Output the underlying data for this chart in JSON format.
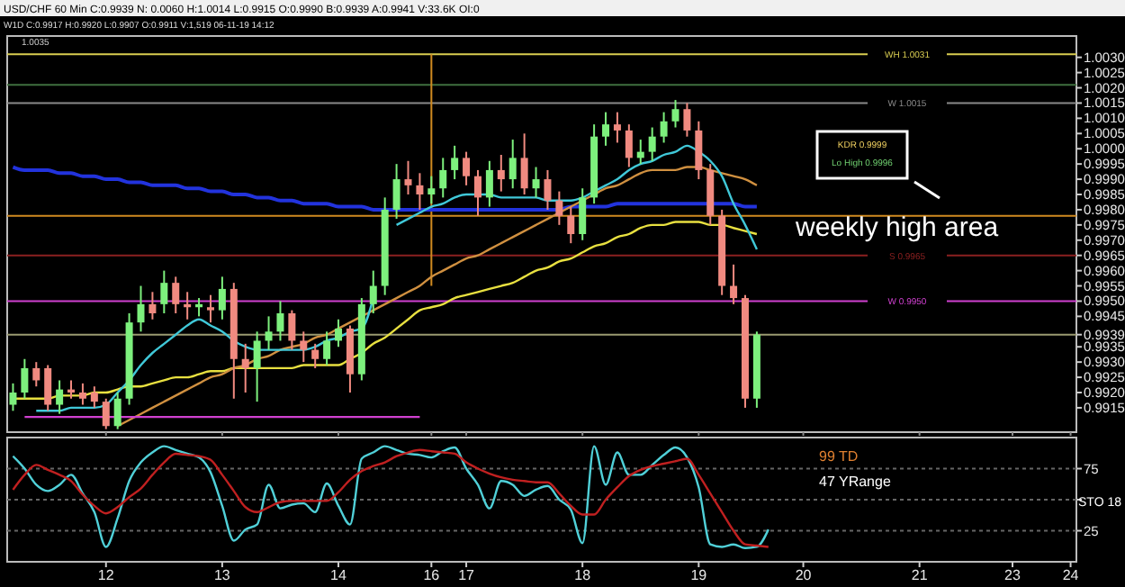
{
  "chart_data": [
    {
      "type": "candlestick",
      "title": "USD/CHF 60 Min C:0.9939 N: 0.0060 H:1.0014 L:0.9915 O:0.9990 B:0.9939 A:0.9941 V:33.6K OI:0",
      "subtitle": "W1D C:0.9917 H:0.9920 L:0.9907 O:0.9911 V:1,519 06-11-19 14:12",
      "categories": [
        null,
        null,
        null,
        null,
        null,
        null,
        null,
        null,
        "12",
        null,
        null,
        null,
        null,
        null,
        null,
        null,
        null,
        null,
        "13",
        null,
        null,
        null,
        null,
        null,
        null,
        null,
        null,
        null,
        "14",
        null,
        null,
        null,
        null,
        null,
        null,
        null,
        "16",
        null,
        null,
        "17",
        null,
        null,
        null,
        null,
        null,
        null,
        null,
        null,
        null,
        "18",
        null,
        null,
        null,
        null,
        null,
        null,
        null,
        null,
        null,
        "19",
        null,
        null,
        null,
        null,
        null,
        null,
        null,
        null,
        "20",
        null,
        null,
        null,
        null,
        null,
        null,
        null,
        null,
        null,
        "21",
        null,
        null,
        null,
        null,
        null,
        null,
        null,
        "23",
        null,
        null,
        null,
        null,
        "24"
      ],
      "ohlc": [
        [
          0.9916,
          0.9923,
          0.9914,
          0.992
        ],
        [
          0.992,
          0.9931,
          0.9918,
          0.9928
        ],
        [
          0.9928,
          0.993,
          0.9922,
          0.9924
        ],
        [
          0.9928,
          0.9929,
          0.9914,
          0.9916
        ],
        [
          0.9916,
          0.9924,
          0.9913,
          0.9921
        ],
        [
          0.9921,
          0.9924,
          0.9918,
          0.992
        ],
        [
          0.992,
          0.9923,
          0.9916,
          0.9918
        ],
        [
          0.992,
          0.9922,
          0.9915,
          0.9917
        ],
        [
          0.9917,
          0.9918,
          0.9908,
          0.9909
        ],
        [
          0.9909,
          0.992,
          0.9908,
          0.9918
        ],
        [
          0.9918,
          0.9946,
          0.9916,
          0.9943
        ],
        [
          0.9943,
          0.9955,
          0.994,
          0.9949
        ],
        [
          0.9949,
          0.9953,
          0.9944,
          0.9946
        ],
        [
          0.9949,
          0.996,
          0.9946,
          0.9956
        ],
        [
          0.9956,
          0.9958,
          0.9946,
          0.9949
        ],
        [
          0.9949,
          0.9953,
          0.9944,
          0.9948
        ],
        [
          0.9948,
          0.9951,
          0.9945,
          0.9949
        ],
        [
          0.9948,
          0.9952,
          0.9943,
          0.9947
        ],
        [
          0.9947,
          0.9958,
          0.9944,
          0.9954
        ],
        [
          0.9954,
          0.9956,
          0.9918,
          0.9931
        ],
        [
          0.9931,
          0.9936,
          0.992,
          0.9928
        ],
        [
          0.9928,
          0.994,
          0.9917,
          0.9937
        ],
        [
          0.9937,
          0.9945,
          0.9934,
          0.994
        ],
        [
          0.994,
          0.995,
          0.9937,
          0.9946
        ],
        [
          0.9946,
          0.9947,
          0.9934,
          0.9937
        ],
        [
          0.9937,
          0.994,
          0.993,
          0.9934
        ],
        [
          0.9934,
          0.9936,
          0.9928,
          0.9931
        ],
        [
          0.9931,
          0.994,
          0.9929,
          0.9937
        ],
        [
          0.9937,
          0.9944,
          0.9935,
          0.9941
        ],
        [
          0.9941,
          0.9942,
          0.992,
          0.9926
        ],
        [
          0.9926,
          0.9951,
          0.9924,
          0.9949
        ],
        [
          0.9949,
          0.996,
          0.9946,
          0.9955
        ],
        [
          0.9955,
          0.9984,
          0.9952,
          0.998
        ],
        [
          0.998,
          0.9995,
          0.9977,
          0.999
        ],
        [
          0.999,
          0.9996,
          0.9985,
          0.9988
        ],
        [
          0.9988,
          0.9992,
          0.998,
          0.9985
        ],
        [
          0.9985,
          0.9991,
          0.9982,
          0.9987
        ],
        [
          0.9987,
          0.9997,
          0.9984,
          0.9993
        ],
        [
          0.9993,
          1.0001,
          0.999,
          0.9997
        ],
        [
          0.9997,
          0.9999,
          0.9988,
          0.9991
        ],
        [
          0.9991,
          0.9993,
          0.9978,
          0.9984
        ],
        [
          0.9984,
          0.9996,
          0.9981,
          0.9993
        ],
        [
          0.9993,
          0.9998,
          0.9986,
          0.999
        ],
        [
          0.999,
          1.0003,
          0.9987,
          0.9997
        ],
        [
          0.9997,
          1.0005,
          0.9985,
          0.9987
        ],
        [
          0.9987,
          0.9994,
          0.9984,
          0.999
        ],
        [
          0.999,
          0.9993,
          0.998,
          0.9983
        ],
        [
          0.9983,
          0.9986,
          0.9975,
          0.9978
        ],
        [
          0.9978,
          0.9981,
          0.9969,
          0.9972
        ],
        [
          0.9972,
          0.9987,
          0.997,
          0.9984
        ],
        [
          0.9984,
          1.0008,
          0.9982,
          1.0004
        ],
        [
          1.0004,
          1.0012,
          1.0001,
          1.0008
        ],
        [
          1.0008,
          1.0012,
          1.0002,
          1.0006
        ],
        [
          1.0006,
          1.0008,
          0.9994,
          0.9997
        ],
        [
          0.9997,
          1.0003,
          0.9995,
          0.9999
        ],
        [
          0.9999,
          1.0007,
          0.9996,
          1.0004
        ],
        [
          1.0004,
          1.0012,
          1.0002,
          1.0009
        ],
        [
          1.0009,
          1.0016,
          1.0007,
          1.0013
        ],
        [
          1.0013,
          1.0015,
          1.0004,
          1.0006
        ],
        [
          1.0006,
          1.0009,
          0.999,
          0.9993
        ],
        [
          0.9993,
          0.9995,
          0.9975,
          0.9978
        ],
        [
          0.9978,
          0.998,
          0.9952,
          0.9955
        ],
        [
          0.9955,
          0.9962,
          0.9949,
          0.9951
        ],
        [
          0.9951,
          0.9952,
          0.9915,
          0.9918
        ],
        [
          0.9918,
          0.994,
          0.9915,
          0.9939
        ],
        null,
        null,
        null,
        null,
        null,
        null,
        null,
        null,
        null,
        null,
        null,
        null,
        null,
        null,
        null,
        null,
        null,
        null,
        null,
        null,
        null,
        null,
        null,
        null,
        null,
        null,
        null
      ],
      "series": [
        {
          "type": "line",
          "color": "#2233dd",
          "values": [
            0.9994,
            0.9993,
            0.9993,
            0.9993,
            0.9992,
            0.9992,
            0.9991,
            0.9991,
            0.999,
            0.999,
            0.9989,
            0.9989,
            0.9988,
            0.9988,
            0.9988,
            0.9987,
            0.9987,
            0.9986,
            0.9986,
            0.9985,
            0.9985,
            0.9984,
            0.9984,
            0.9983,
            0.9983,
            0.9982,
            0.9982,
            0.9982,
            0.9981,
            0.9981,
            0.9981,
            0.998,
            0.998,
            0.998,
            0.998,
            0.998,
            0.998,
            0.998,
            0.998,
            0.998,
            0.998,
            0.998,
            0.998,
            0.998,
            0.998,
            0.998,
            0.998,
            0.998,
            0.9981,
            0.9981,
            0.9981,
            0.9981,
            0.9982,
            0.9982,
            0.9982,
            0.9982,
            0.9982,
            0.9982,
            0.9982,
            0.9982,
            0.9982,
            0.9982,
            0.9982,
            0.9981,
            0.9981,
            null,
            null,
            null,
            null,
            null,
            null,
            null,
            null,
            null,
            null,
            null,
            null,
            null,
            null,
            null,
            null,
            null,
            null,
            null,
            null,
            null,
            null,
            null,
            null,
            null,
            null,
            null
          ]
        },
        {
          "type": "line",
          "color": "#e8e040",
          "values": [
            0.9918,
            0.9918,
            0.9918,
            0.9918,
            0.9919,
            0.9919,
            0.9919,
            0.992,
            0.992,
            0.9921,
            0.9922,
            0.9922,
            0.9923,
            0.9924,
            0.9925,
            0.9925,
            0.9926,
            0.9927,
            0.9927,
            0.9928,
            0.9928,
            0.9928,
            0.9928,
            0.9928,
            0.9928,
            0.9929,
            0.9929,
            0.9929,
            0.9929,
            0.9931,
            0.9933,
            0.9936,
            0.9938,
            0.9941,
            0.9944,
            0.9947,
            0.9948,
            0.9949,
            0.9951,
            0.9952,
            0.9953,
            0.9954,
            0.9955,
            0.9956,
            0.9958,
            0.996,
            0.9961,
            0.9963,
            0.9964,
            0.9966,
            0.9968,
            0.9969,
            0.9971,
            0.9972,
            0.9974,
            0.9975,
            0.9975,
            0.9976,
            0.9976,
            0.9976,
            0.9975,
            0.9975,
            0.9974,
            0.9973,
            0.9972,
            null,
            null,
            null,
            null,
            null,
            null,
            null,
            null,
            null,
            null,
            null,
            null,
            null,
            null,
            null,
            null,
            null,
            null,
            null,
            null,
            null,
            null,
            null,
            null,
            null,
            null,
            null
          ]
        },
        {
          "type": "line",
          "color": "#d09040",
          "values": [
            null,
            null,
            null,
            null,
            null,
            null,
            null,
            null,
            null,
            0.9909,
            0.9911,
            0.9913,
            0.9915,
            0.9917,
            0.9919,
            0.9921,
            0.9923,
            0.9925,
            0.9926,
            0.9928,
            0.9929,
            0.9931,
            0.9932,
            0.9934,
            0.9935,
            0.9936,
            0.9938,
            0.9939,
            0.9941,
            0.9943,
            0.9945,
            0.9947,
            0.9949,
            0.9951,
            0.9953,
            0.9955,
            0.9958,
            0.996,
            0.9962,
            0.9964,
            0.9965,
            0.9967,
            0.9969,
            0.9971,
            0.9973,
            0.9975,
            0.9977,
            0.9979,
            0.9981,
            0.9983,
            0.9985,
            0.9987,
            0.9988,
            0.999,
            0.9992,
            0.9993,
            0.9993,
            0.9993,
            0.9994,
            0.9994,
            0.9993,
            0.9992,
            0.9991,
            0.999,
            0.9988,
            null,
            null,
            null,
            null,
            null,
            null,
            null,
            null,
            null,
            null,
            null,
            null,
            null,
            null,
            null,
            null,
            null,
            null,
            null,
            null,
            null,
            null,
            null,
            null,
            null,
            null,
            null
          ]
        },
        {
          "type": "line",
          "color": "#d040d0",
          "values": [
            null,
            0.9912,
            0.9912,
            0.9912,
            0.9912,
            0.9912,
            0.9912,
            0.9912,
            0.9912,
            0.9912,
            0.9912,
            0.9912,
            0.9912,
            0.9912,
            0.9912,
            0.9912,
            0.9912,
            0.9912,
            0.9912,
            0.9912,
            0.9912,
            0.9912,
            0.9912,
            0.9912,
            0.9912,
            0.9912,
            0.9912,
            0.9912,
            0.9912,
            0.9912,
            0.9912,
            0.9912,
            0.9912,
            0.9912,
            0.9912,
            0.9912,
            null,
            null,
            null,
            null,
            null,
            null,
            null,
            null,
            null,
            null,
            null,
            null,
            null,
            null,
            null,
            null,
            null,
            null,
            null,
            null,
            null,
            null,
            null,
            null,
            null,
            null,
            null,
            null,
            null,
            null,
            null,
            null,
            null,
            null,
            null,
            null,
            null,
            null,
            null,
            null,
            null,
            null,
            null,
            null,
            null,
            null,
            null,
            null,
            null,
            null,
            null,
            null,
            null,
            null,
            null,
            null
          ]
        },
        {
          "type": "line",
          "color": "#40c8d8",
          "values": [
            null,
            null,
            0.9914,
            0.9914,
            0.9914,
            0.9915,
            0.9915,
            0.9915,
            0.9916,
            0.992,
            0.9924,
            0.9929,
            0.9933,
            0.9936,
            0.9939,
            0.9942,
            0.9944,
            0.9942,
            0.994,
            0.9937,
            0.9935,
            0.9934,
            0.9934,
            0.9934,
            0.9934,
            0.9934,
            0.9935,
            0.9937,
            0.9938,
            0.994,
            0.9941,
            0.9951,
            null,
            0.9975,
            0.9977,
            0.9979,
            0.9981,
            0.9982,
            0.9984,
            0.9985,
            0.9985,
            0.9985,
            0.9984,
            0.9984,
            0.9984,
            0.9984,
            0.9983,
            0.9983,
            0.9983,
            0.9984,
            0.9986,
            0.9988,
            0.999,
            0.9993,
            0.9995,
            0.9996,
            0.9998,
            0.9999,
            1.0001,
            0.9999,
            0.9996,
            0.9991,
            0.9982,
            0.9975,
            0.9967,
            null,
            null,
            null,
            null,
            null,
            null,
            null,
            null,
            null,
            null,
            null,
            null,
            null,
            null,
            null,
            null,
            null,
            null,
            null,
            null,
            null,
            null,
            null,
            null,
            null,
            null,
            null
          ]
        }
      ],
      "ylim": [
        0.9907,
        1.0037
      ],
      "yticks": [
        {
          "value": 0.9915,
          "label": "0.9915"
        },
        {
          "value": 0.992,
          "label": "0.9920"
        },
        {
          "value": 0.9925,
          "label": "0.9925"
        },
        {
          "value": 0.993,
          "label": "0.9930"
        },
        {
          "value": 0.9935,
          "label": "0.9935"
        },
        {
          "value": 0.9939,
          "label": "0.9939"
        },
        {
          "value": 0.9945,
          "label": "0.9945"
        },
        {
          "value": 0.995,
          "label": "0.9950"
        },
        {
          "value": 0.9955,
          "label": "0.9955"
        },
        {
          "value": 0.996,
          "label": "0.9960"
        },
        {
          "value": 0.9965,
          "label": "0.9965"
        },
        {
          "value": 0.997,
          "label": "0.9970"
        },
        {
          "value": 0.9975,
          "label": "0.9975"
        },
        {
          "value": 0.998,
          "label": "0.9980"
        },
        {
          "value": 0.9985,
          "label": "0.9985"
        },
        {
          "value": 0.999,
          "label": "0.9990"
        },
        {
          "value": 0.9995,
          "label": "0.9995"
        },
        {
          "value": 1.0,
          "label": "1.0000"
        },
        {
          "value": 1.0005,
          "label": "1.0005"
        },
        {
          "value": 1.001,
          "label": "1.0010"
        },
        {
          "value": 1.0015,
          "label": "1.0015"
        },
        {
          "value": 1.002,
          "label": "1.0020"
        },
        {
          "value": 1.0025,
          "label": "1.0025"
        },
        {
          "value": 1.003,
          "label": "1.0030"
        }
      ],
      "tick_labels": "y",
      "ref_lines": [
        {
          "axis": "y",
          "value": 1.0031,
          "label": "WH 1.0031",
          "color": "#d8cc50"
        },
        {
          "axis": "y",
          "value": 1.0021,
          "color": "#3f6f3f"
        },
        {
          "axis": "y",
          "value": 1.0015,
          "label": "W 1.0015",
          "color": "#8a8a8a"
        },
        {
          "axis": "y",
          "value": 0.9978,
          "color": "#d08a20"
        },
        {
          "axis": "y",
          "value": 0.9965,
          "label": "S 0.9965",
          "color": "#8b2020"
        },
        {
          "axis": "y",
          "value": 0.995,
          "label": "W 0.9950",
          "color": "#d040d0"
        },
        {
          "axis": "y",
          "value": 0.9939,
          "color": "#9a9a70"
        },
        {
          "axis": "x",
          "value": "16",
          "color": "#d08a20"
        }
      ],
      "annotations": [
        "KDR 0.9999",
        "Lo High 0.9996",
        "weekly high area",
        "1.0035"
      ]
    },
    {
      "type": "line",
      "categories": [
        null,
        null,
        null,
        null,
        null,
        null,
        null,
        null,
        "12",
        null,
        null,
        null,
        null,
        null,
        null,
        null,
        null,
        null,
        "13",
        null,
        null,
        null,
        null,
        null,
        null,
        null,
        null,
        null,
        "14",
        null,
        null,
        null,
        null,
        null,
        null,
        null,
        "16",
        null,
        null,
        "17",
        null,
        null,
        null,
        null,
        null,
        null,
        null,
        null,
        null,
        "18",
        null,
        null,
        null,
        null,
        null,
        null,
        null,
        null,
        null,
        "19",
        null,
        null,
        null,
        null,
        null,
        null,
        null,
        null,
        "20",
        null,
        null,
        null,
        null,
        null,
        null,
        null,
        null,
        null,
        "21",
        null,
        null,
        null,
        null,
        null,
        null,
        null,
        "23",
        null,
        null,
        null,
        null,
        "24"
      ],
      "series": [
        {
          "color": "#50d0d8",
          "values": [
            85,
            75,
            62,
            57,
            62,
            70,
            55,
            40,
            12,
            35,
            65,
            80,
            88,
            93,
            90,
            87,
            84,
            72,
            45,
            17,
            26,
            30,
            62,
            43,
            46,
            47,
            40,
            63,
            45,
            30,
            83,
            88,
            93,
            90,
            87,
            86,
            84,
            89,
            92,
            75,
            62,
            43,
            65,
            62,
            53,
            58,
            61,
            50,
            42,
            15,
            93,
            62,
            88,
            70,
            70,
            78,
            86,
            92,
            84,
            60,
            14,
            12,
            14,
            11,
            12,
            26,
            null,
            null,
            null,
            null,
            null,
            null,
            null,
            null,
            null,
            null,
            null,
            null,
            null,
            null,
            null,
            null,
            null,
            null,
            null,
            null,
            null,
            null,
            null,
            null,
            null,
            null
          ]
        },
        {
          "color": "#c02020",
          "values": [
            58,
            70,
            78,
            74,
            70,
            65,
            54,
            45,
            39,
            44,
            52,
            59,
            70,
            80,
            87,
            86,
            85,
            82,
            70,
            57,
            44,
            40,
            44,
            48,
            49,
            49,
            49,
            49,
            56,
            66,
            73,
            77,
            80,
            85,
            88,
            90,
            89,
            88,
            87,
            80,
            75,
            71,
            68,
            66,
            65,
            64,
            64,
            55,
            45,
            38,
            38,
            50,
            60,
            69,
            74,
            77,
            79,
            81,
            83,
            70,
            55,
            40,
            25,
            14,
            13,
            12,
            null,
            null,
            null,
            null,
            null,
            null,
            null,
            null,
            null,
            null,
            null,
            null,
            null,
            null,
            null,
            null,
            null,
            null,
            null,
            null,
            null,
            null,
            null,
            null,
            null,
            null
          ]
        }
      ],
      "ylim": [
        0,
        100
      ],
      "yticks": [
        25,
        {
          "value": 50,
          "label": null
        },
        75
      ],
      "grid": "y",
      "annotations": [
        "99 TD",
        "47 YRange",
        "STO 18"
      ]
    }
  ]
}
